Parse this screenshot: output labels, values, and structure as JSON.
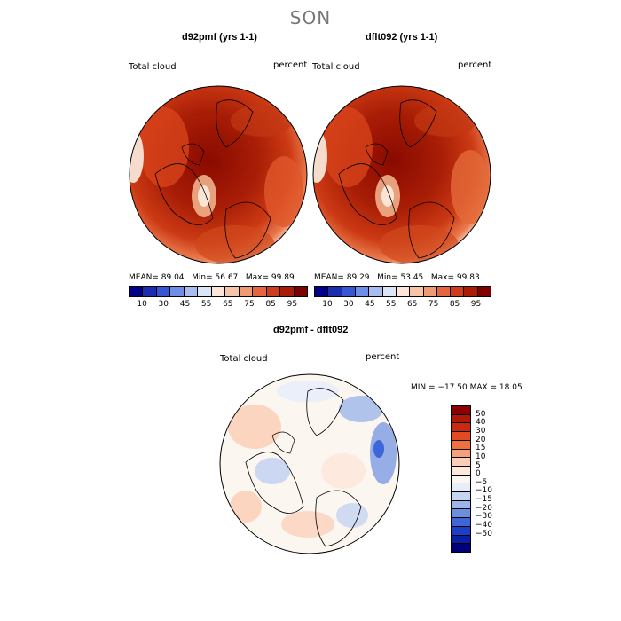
{
  "season": "SON",
  "panels": [
    {
      "title": "d92pmf (yrs 1-1)",
      "var_label": "Total cloud",
      "unit_label": "percent",
      "stats": {
        "mean_label": "MEAN=",
        "mean": "89.04",
        "min_label": "Min=",
        "min": "56.67",
        "max_label": "Max=",
        "max": "99.89"
      }
    },
    {
      "title": "dflt092 (yrs 1-1)",
      "var_label": "Total cloud",
      "unit_label": "percent",
      "stats": {
        "mean_label": "MEAN=",
        "mean": "89.29",
        "min_label": "Min=",
        "min": "53.45",
        "max_label": "Max=",
        "max": "99.83"
      }
    }
  ],
  "abs_colorbar": {
    "colors": [
      "#00008b",
      "#1a2fb0",
      "#3557d6",
      "#6e8fe8",
      "#a7bdf2",
      "#dbe5f8",
      "#fde6d8",
      "#f8c4a8",
      "#f09a73",
      "#e6653f",
      "#d13d1c",
      "#aa1c06",
      "#7f0000"
    ],
    "ticks": [
      "10",
      "30",
      "45",
      "55",
      "65",
      "75",
      "85",
      "95"
    ]
  },
  "diff": {
    "title": "d92pmf - dflt092",
    "var_label": "Total cloud",
    "unit_label": "percent",
    "range_text": "MIN = −17.50 MAX =  18.05",
    "colors": [
      "#8b0000",
      "#b01808",
      "#cc2a10",
      "#e34a22",
      "#f07040",
      "#f6a07a",
      "#fbcdb4",
      "#fde8dc",
      "#fbf6f0",
      "#e8eef9",
      "#c6d5f2",
      "#9cb6ea",
      "#6b8fe0",
      "#3d66d8",
      "#1c3fc8",
      "#0a1fa8",
      "#00007a"
    ],
    "labels": [
      "50",
      "40",
      "30",
      "20",
      "15",
      "10",
      "5",
      "0",
      "−5",
      "−10",
      "−15",
      "−20",
      "−30",
      "−40",
      "−50"
    ]
  },
  "icons": {
    "map1": "polar-map-icon",
    "map2": "polar-map-icon",
    "map3": "polar-diff-map-icon"
  }
}
